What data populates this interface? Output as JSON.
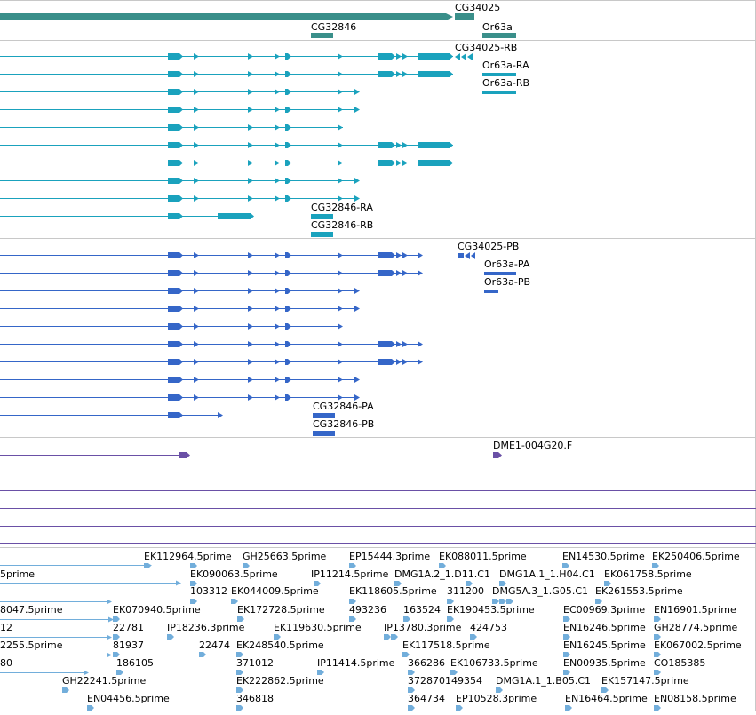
{
  "colors": {
    "gene": "#3a8f8a",
    "mrna_rb": "#1aa2bd",
    "mrna_pb": "#3566c8",
    "est": "#6a50a6",
    "cdna": "#72aedb",
    "divider": "#c8c8c8"
  },
  "tracks": {
    "gene": {
      "labels": [
        "CG34025",
        "CG32846",
        "Or63a"
      ]
    },
    "transcript_rb": {
      "labels": [
        "CG34025-RB",
        "Or63a-RA",
        "Or63a-RB",
        "CG32846-RA",
        "CG32846-RB"
      ]
    },
    "transcript_pb": {
      "labels": [
        "CG34025-PB",
        "Or63a-PA",
        "Or63a-PB",
        "CG32846-PA",
        "CG32846-PB"
      ]
    },
    "est": {
      "labels": [
        "DME1-004G20.F"
      ]
    },
    "cdna": {
      "labels": [
        "EK112964.5prime",
        "GH25663.5prime",
        "EP15444.3prime",
        "EK088011.5prime",
        "EN14530.5prime",
        "EK250406.5prime",
        "5prime",
        "EK090063.5prime",
        "IP11214.5prime",
        "DMG1A.2_1.D11.C1",
        "DMG1A.1_1.H04.C1",
        "EK061758.5prime",
        "103312",
        "EK044009.5prime",
        "EK118605.5prime",
        "311200",
        "DMG5A.3_1.G05.C1",
        "EK261553.5prime",
        "8047.5prime",
        "EK070940.5prime",
        "EK172728.5prime",
        "493236",
        "163524",
        "EK190453.5prime",
        "EC00969.3prime",
        "EN16901.5prime",
        "12",
        "22781",
        "IP18236.3prime",
        "EK119630.5prime",
        "IP13780.3prime",
        "424753",
        "EN16246.5prime",
        "GH28774.5prime",
        "2255.5prime",
        "81937",
        "22474",
        "EK248540.5prime",
        "EK117518.5prime",
        "EN16245.5prime",
        "EK067002.5prime",
        "80",
        "186105",
        "371012",
        "IP11414.5prime",
        "366286",
        "EK106733.5prime",
        "EN00935.5prime",
        "CO185385",
        "GH22241.5prime",
        "EK222862.5prime",
        "372870149354",
        "DMG1A.1_1.B05.C1",
        "EK157147.5prime",
        "EN04456.5prime",
        "346818",
        "364734",
        "EP10528.3prime",
        "EN16464.5prime",
        "EN08158.5prime"
      ]
    }
  }
}
